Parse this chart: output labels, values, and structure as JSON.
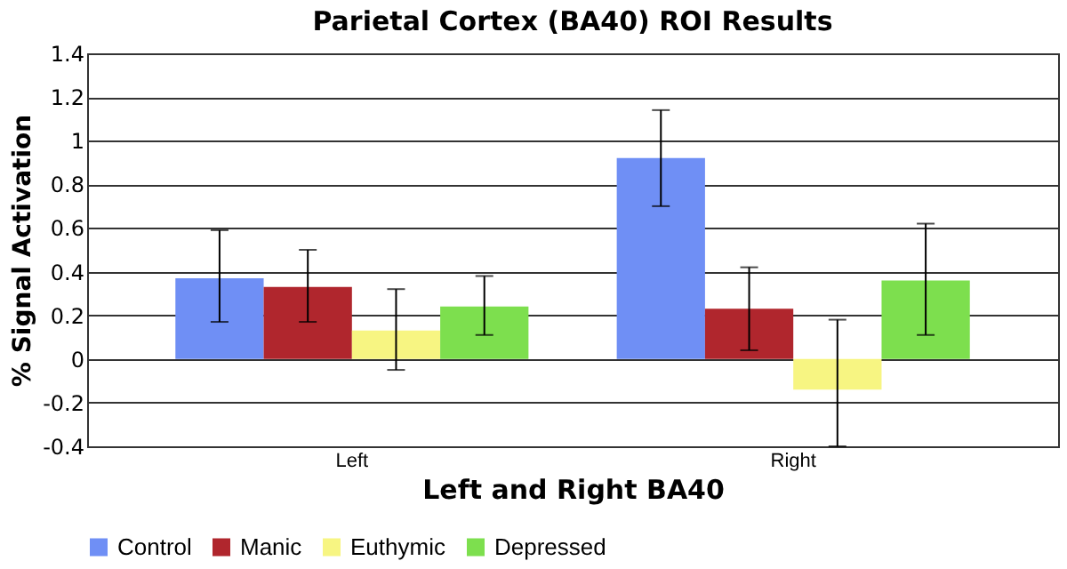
{
  "chart_data": {
    "type": "bar",
    "title": "Parietal Cortex (BA40) ROI Results",
    "xlabel": "Left and Right BA40",
    "ylabel": "% Signal Activation",
    "categories": [
      "Left",
      "Right"
    ],
    "series": [
      {
        "name": "Control",
        "color": "#6f8ff5",
        "values": [
          0.37,
          0.92
        ],
        "errors": [
          [
            0.17,
            0.59
          ],
          [
            0.7,
            1.14
          ]
        ]
      },
      {
        "name": "Manic",
        "color": "#b0262d",
        "values": [
          0.33,
          0.23
        ],
        "errors": [
          [
            0.17,
            0.5
          ],
          [
            0.04,
            0.42
          ]
        ]
      },
      {
        "name": "Euthymic",
        "color": "#f7f582",
        "values": [
          0.13,
          -0.14
        ],
        "errors": [
          [
            -0.05,
            0.32
          ],
          [
            -0.4,
            0.18
          ]
        ]
      },
      {
        "name": "Depressed",
        "color": "#7ddf4e",
        "values": [
          0.24,
          0.36
        ],
        "errors": [
          [
            0.11,
            0.38
          ],
          [
            0.11,
            0.62
          ]
        ]
      }
    ],
    "ylim": [
      -0.4,
      1.4
    ],
    "yticks": [
      -0.4,
      -0.2,
      0,
      0.2,
      0.4,
      0.6,
      0.8,
      1,
      1.2,
      1.4
    ],
    "grid": "y",
    "legend": "bottom"
  }
}
